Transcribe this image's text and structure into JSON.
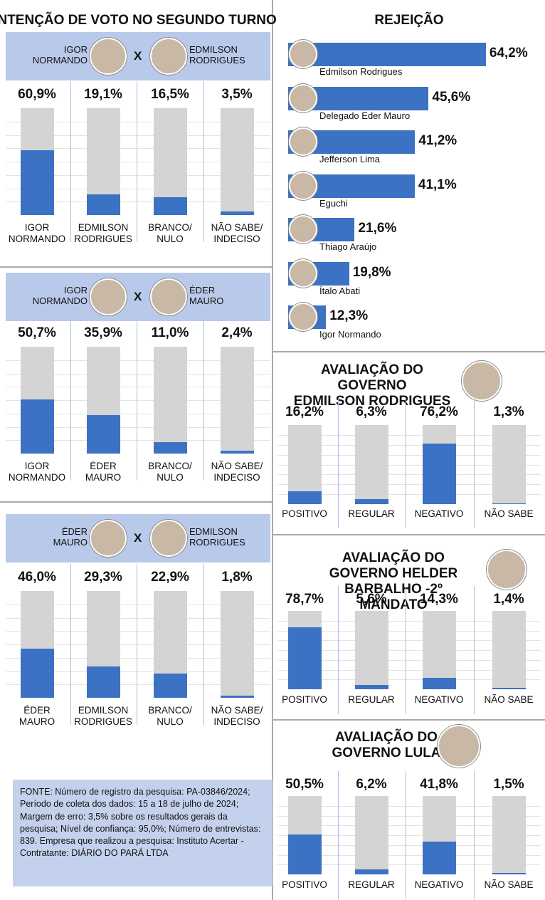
{
  "chart_data": [
    {
      "type": "bar",
      "title": "INTENÇÃO DE VOTO NO SEGUNDO TURNO",
      "candidates": [
        "IGOR\nNORMANDO",
        "EDMILSON\nRODRIGUES"
      ],
      "versus": "X",
      "categories": [
        "IGOR\nNORMANDO",
        "EDMILSON\nRODRIGUES",
        "BRANCO/\nNULO",
        "NÃO SABE/\nINDECISO"
      ],
      "values": [
        60.9,
        19.1,
        16.5,
        3.5
      ],
      "value_labels": [
        "60,9%",
        "19,1%",
        "16,5%",
        "3,5%"
      ],
      "color": "#3b72c3",
      "ylim": [
        0,
        100
      ]
    },
    {
      "type": "bar",
      "candidates": [
        "IGOR\nNORMANDO",
        "ÉDER\nMAURO"
      ],
      "versus": "X",
      "categories": [
        "IGOR\nNORMANDO",
        "ÉDER\nMAURO",
        "BRANCO/\nNULO",
        "NÃO SABE/\nINDECISO"
      ],
      "values": [
        50.7,
        35.9,
        11.0,
        2.4
      ],
      "value_labels": [
        "50,7%",
        "35,9%",
        "11,0%",
        "2,4%"
      ],
      "color": "#3b72c3",
      "ylim": [
        0,
        100
      ]
    },
    {
      "type": "bar",
      "candidates": [
        "ÉDER\nMAURO",
        "EDMILSON\nRODRIGUES"
      ],
      "versus": "X",
      "categories": [
        "ÉDER\nMAURO",
        "EDMILSON\nRODRIGUES",
        "BRANCO/\nNULO",
        "NÃO SABE/\nINDECISO"
      ],
      "values": [
        46.0,
        29.3,
        22.9,
        1.8
      ],
      "value_labels": [
        "46,0%",
        "29,3%",
        "22,9%",
        "1,8%"
      ],
      "color": "#3b72c3",
      "ylim": [
        0,
        100
      ]
    },
    {
      "type": "hbar",
      "title": "REJEIÇÃO",
      "categories": [
        "Edmilson Rodrigues",
        "Delegado Eder Mauro",
        "Jefferson Lima",
        "Eguchi",
        "Thiago Araújo",
        "Ítalo Abati",
        "Igor Normando"
      ],
      "values": [
        64.2,
        45.6,
        41.2,
        41.1,
        21.6,
        19.8,
        12.3
      ],
      "value_labels": [
        "64,2%",
        "45,6%",
        "41,2%",
        "41,1%",
        "21,6%",
        "19,8%",
        "12,3%"
      ],
      "color": "#3b72c3",
      "xlim": [
        0,
        70
      ]
    },
    {
      "type": "bar",
      "title": "AVALIAÇÃO DO GOVERNO\nEDMILSON RODRIGUES",
      "categories": [
        "POSITIVO",
        "REGULAR",
        "NEGATIVO",
        "NÃO SABE"
      ],
      "values": [
        16.2,
        6.3,
        76.2,
        1.3
      ],
      "value_labels": [
        "16,2%",
        "6,3%",
        "76,2%",
        "1,3%"
      ],
      "color": "#3b72c3",
      "ylim": [
        0,
        100
      ]
    },
    {
      "type": "bar",
      "title": "AVALIAÇÃO DO GOVERNO HELDER\nBARBALHO -2º MANDATO",
      "categories": [
        "POSITIVO",
        "REGULAR",
        "NEGATIVO",
        "NÃO SABE"
      ],
      "values": [
        78.7,
        5.6,
        14.3,
        1.4
      ],
      "value_labels": [
        "78,7%",
        "5,6%",
        "14,3%",
        "1,4%"
      ],
      "color": "#3b72c3",
      "ylim": [
        0,
        100
      ]
    },
    {
      "type": "bar",
      "title": "AVALIAÇÃO DO\nGOVERNO LULA",
      "categories": [
        "POSITIVO",
        "REGULAR",
        "NEGATIVO",
        "NÃO SABE"
      ],
      "values": [
        50.5,
        6.2,
        41.8,
        1.5
      ],
      "value_labels": [
        "50,5%",
        "6,2%",
        "41,8%",
        "1,5%"
      ],
      "color": "#3b72c3",
      "ylim": [
        0,
        100
      ]
    }
  ],
  "source": "FONTE: Número de registro da pesquisa: PA-03846/2024; Período de coleta dos dados: 15 a 18 de julho de 2024; Margem de erro: 3,5% sobre os resultados gerais da pesquisa; Nível de confiança: 95,0%; Número de entrevistas: 839. Empresa que realizou a pesquisa: Instituto Acertar - Contratante: DIÁRIO DO PARÁ LTDA"
}
